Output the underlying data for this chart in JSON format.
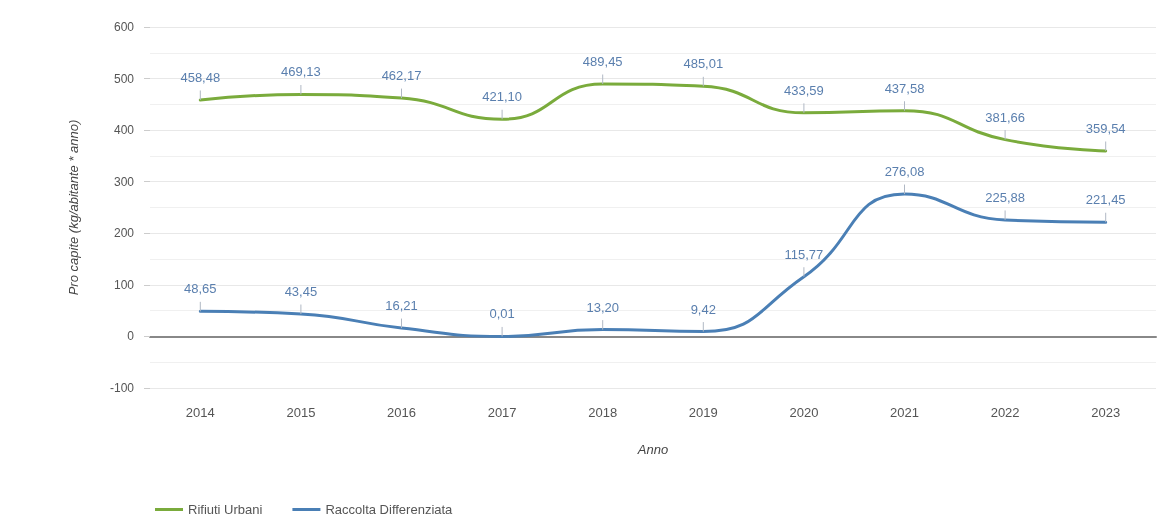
{
  "chart_data": {
    "type": "line",
    "xlabel": "Anno",
    "ylabel": "Pro capite (kg/abitante * anno)",
    "categories": [
      "2014",
      "2015",
      "2016",
      "2017",
      "2018",
      "2019",
      "2020",
      "2021",
      "2022",
      "2023"
    ],
    "series": [
      {
        "name": "Rifiuti Urbani",
        "color": "#7aab3c",
        "values": [
          458.48,
          469.13,
          462.17,
          421.1,
          489.45,
          485.01,
          433.59,
          437.58,
          381.66,
          359.54
        ],
        "value_labels": [
          "458,48",
          "469,13",
          "462,17",
          "421,10",
          "489,45",
          "485,01",
          "433,59",
          "437,58",
          "381,66",
          "359,54"
        ]
      },
      {
        "name": "Raccolta Differenziata",
        "color": "#4a7fb5",
        "values": [
          48.65,
          43.45,
          16.21,
          0.01,
          13.2,
          9.42,
          115.77,
          276.08,
          225.88,
          221.45
        ],
        "value_labels": [
          "48,65",
          "43,45",
          "16,21",
          "0,01",
          "13,20",
          "9,42",
          "115,77",
          "276,08",
          "225,88",
          "221,45"
        ]
      }
    ],
    "ylim": [
      -100,
      600
    ],
    "yticks": [
      -100,
      {
        "value": -50,
        "label": null
      },
      0,
      {
        "value": 50,
        "label": null
      },
      100,
      {
        "value": 150,
        "label": null
      },
      200,
      {
        "value": 250,
        "label": null
      },
      300,
      {
        "value": 350,
        "label": null
      },
      400,
      {
        "value": 450,
        "label": null
      },
      500,
      {
        "value": 550,
        "label": null
      },
      600
    ],
    "grid": true,
    "legend": "bottom left",
    "marker": "none",
    "line_style": "solid"
  }
}
